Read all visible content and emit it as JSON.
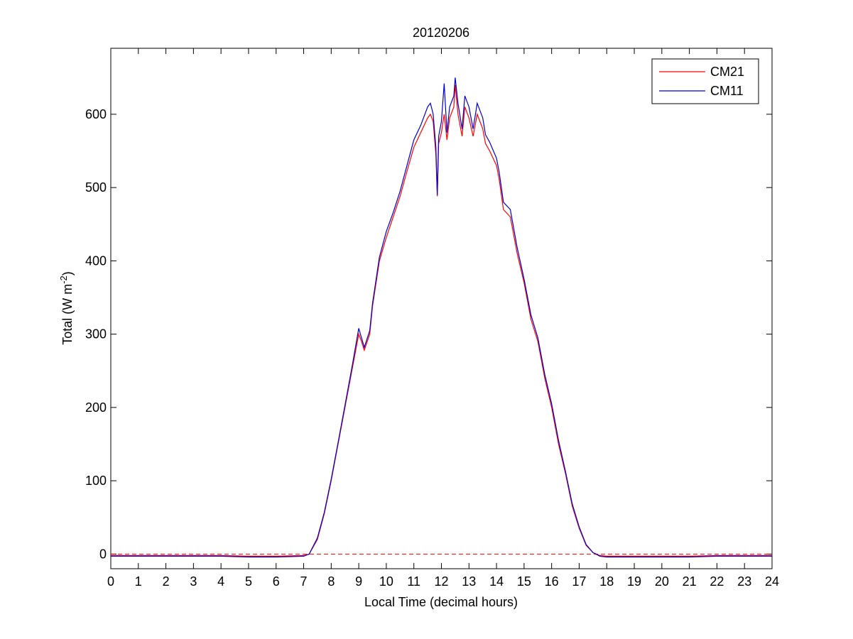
{
  "chart_data": {
    "type": "line",
    "title": "20120206",
    "xlabel": "Local Time (decimal hours)",
    "ylabel": {
      "prefix": "Total (W m",
      "superscript": "-2",
      "suffix": ")"
    },
    "xlim": [
      0,
      24
    ],
    "ylim": [
      -20,
      690
    ],
    "xticks": [
      0,
      1,
      2,
      3,
      4,
      5,
      6,
      7,
      8,
      9,
      10,
      11,
      12,
      13,
      14,
      15,
      16,
      17,
      18,
      19,
      20,
      21,
      22,
      23,
      24
    ],
    "yticks": [
      0,
      100,
      200,
      300,
      400,
      500,
      600
    ],
    "grid": false,
    "legend_position": "top-right",
    "reference_line": {
      "y": 0,
      "style": "dashed",
      "color": "#ff0000"
    },
    "series": [
      {
        "name": "CM21",
        "color": "#ff0000",
        "points": [
          [
            0,
            -2
          ],
          [
            1,
            -2
          ],
          [
            2,
            -2
          ],
          [
            3,
            -2
          ],
          [
            4,
            -2
          ],
          [
            5,
            -3
          ],
          [
            6,
            -3
          ],
          [
            7,
            -2
          ],
          [
            7.2,
            0
          ],
          [
            7.5,
            20
          ],
          [
            7.75,
            55
          ],
          [
            8,
            100
          ],
          [
            8.25,
            150
          ],
          [
            8.5,
            200
          ],
          [
            8.75,
            250
          ],
          [
            9,
            300
          ],
          [
            9.1,
            290
          ],
          [
            9.2,
            278
          ],
          [
            9.4,
            300
          ],
          [
            9.5,
            338
          ],
          [
            9.75,
            400
          ],
          [
            10,
            432
          ],
          [
            10.25,
            460
          ],
          [
            10.5,
            488
          ],
          [
            10.75,
            522
          ],
          [
            11,
            555
          ],
          [
            11.25,
            575
          ],
          [
            11.5,
            595
          ],
          [
            11.6,
            600
          ],
          [
            11.7,
            590
          ],
          [
            11.8,
            545
          ],
          [
            11.85,
            488
          ],
          [
            11.9,
            560
          ],
          [
            12,
            575
          ],
          [
            12.1,
            600
          ],
          [
            12.2,
            565
          ],
          [
            12.3,
            595
          ],
          [
            12.45,
            610
          ],
          [
            12.5,
            640
          ],
          [
            12.6,
            600
          ],
          [
            12.75,
            570
          ],
          [
            12.85,
            610
          ],
          [
            13,
            595
          ],
          [
            13.15,
            570
          ],
          [
            13.3,
            600
          ],
          [
            13.5,
            580
          ],
          [
            13.6,
            560
          ],
          [
            13.75,
            550
          ],
          [
            14,
            530
          ],
          [
            14.1,
            510
          ],
          [
            14.25,
            470
          ],
          [
            14.5,
            460
          ],
          [
            14.75,
            410
          ],
          [
            15,
            370
          ],
          [
            15.25,
            320
          ],
          [
            15.5,
            290
          ],
          [
            15.75,
            240
          ],
          [
            16,
            200
          ],
          [
            16.25,
            150
          ],
          [
            16.5,
            110
          ],
          [
            16.75,
            65
          ],
          [
            17,
            35
          ],
          [
            17.25,
            12
          ],
          [
            17.5,
            2
          ],
          [
            17.75,
            -2
          ],
          [
            18,
            -3
          ],
          [
            19,
            -3
          ],
          [
            20,
            -3
          ],
          [
            21,
            -3
          ],
          [
            22,
            -2
          ],
          [
            23,
            -2
          ],
          [
            24,
            -2
          ]
        ]
      },
      {
        "name": "CM11",
        "color": "#0000cc",
        "points": [
          [
            0,
            -3
          ],
          [
            1,
            -3
          ],
          [
            2,
            -3
          ],
          [
            3,
            -3
          ],
          [
            4,
            -3
          ],
          [
            5,
            -4
          ],
          [
            6,
            -4
          ],
          [
            7,
            -3
          ],
          [
            7.2,
            0
          ],
          [
            7.5,
            22
          ],
          [
            7.75,
            57
          ],
          [
            8,
            102
          ],
          [
            8.25,
            152
          ],
          [
            8.5,
            203
          ],
          [
            8.75,
            254
          ],
          [
            9,
            308
          ],
          [
            9.1,
            295
          ],
          [
            9.2,
            282
          ],
          [
            9.4,
            305
          ],
          [
            9.5,
            342
          ],
          [
            9.75,
            405
          ],
          [
            10,
            440
          ],
          [
            10.25,
            466
          ],
          [
            10.5,
            495
          ],
          [
            10.75,
            530
          ],
          [
            11,
            565
          ],
          [
            11.25,
            585
          ],
          [
            11.5,
            610
          ],
          [
            11.6,
            615
          ],
          [
            11.7,
            600
          ],
          [
            11.8,
            555
          ],
          [
            11.85,
            490
          ],
          [
            11.9,
            570
          ],
          [
            12,
            590
          ],
          [
            12.1,
            642
          ],
          [
            12.2,
            575
          ],
          [
            12.3,
            610
          ],
          [
            12.45,
            625
          ],
          [
            12.5,
            650
          ],
          [
            12.6,
            615
          ],
          [
            12.75,
            580
          ],
          [
            12.85,
            625
          ],
          [
            13,
            610
          ],
          [
            13.15,
            580
          ],
          [
            13.3,
            615
          ],
          [
            13.5,
            595
          ],
          [
            13.6,
            572
          ],
          [
            13.75,
            562
          ],
          [
            14,
            540
          ],
          [
            14.1,
            520
          ],
          [
            14.25,
            480
          ],
          [
            14.5,
            470
          ],
          [
            14.75,
            418
          ],
          [
            15,
            375
          ],
          [
            15.25,
            326
          ],
          [
            15.5,
            295
          ],
          [
            15.75,
            245
          ],
          [
            16,
            205
          ],
          [
            16.25,
            155
          ],
          [
            16.5,
            113
          ],
          [
            16.75,
            68
          ],
          [
            17,
            37
          ],
          [
            17.25,
            13
          ],
          [
            17.5,
            2
          ],
          [
            17.75,
            -3
          ],
          [
            18,
            -4
          ],
          [
            19,
            -4
          ],
          [
            20,
            -4
          ],
          [
            21,
            -4
          ],
          [
            22,
            -3
          ],
          [
            23,
            -3
          ],
          [
            24,
            -3
          ]
        ]
      }
    ]
  }
}
